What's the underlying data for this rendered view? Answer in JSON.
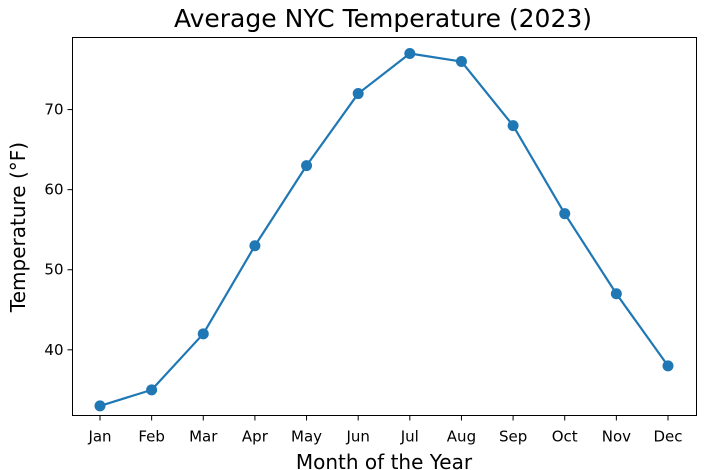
{
  "chart_data": {
    "type": "line",
    "title": "Average NYC Temperature (2023)",
    "xlabel": "Month of the Year",
    "ylabel": "Temperature (°F)",
    "categories": [
      "Jan",
      "Feb",
      "Mar",
      "Apr",
      "May",
      "Jun",
      "Jul",
      "Aug",
      "Sep",
      "Oct",
      "Nov",
      "Dec"
    ],
    "series": [
      {
        "values": [
          33,
          35,
          42,
          53,
          63,
          72,
          77,
          76,
          68,
          57,
          47,
          38
        ],
        "color": "#1f77b4",
        "marker": "circle"
      }
    ],
    "ylim": [
      31.8,
      79.0
    ],
    "yticks": [
      40,
      50,
      60,
      70
    ],
    "grid": false,
    "legend": "none"
  }
}
